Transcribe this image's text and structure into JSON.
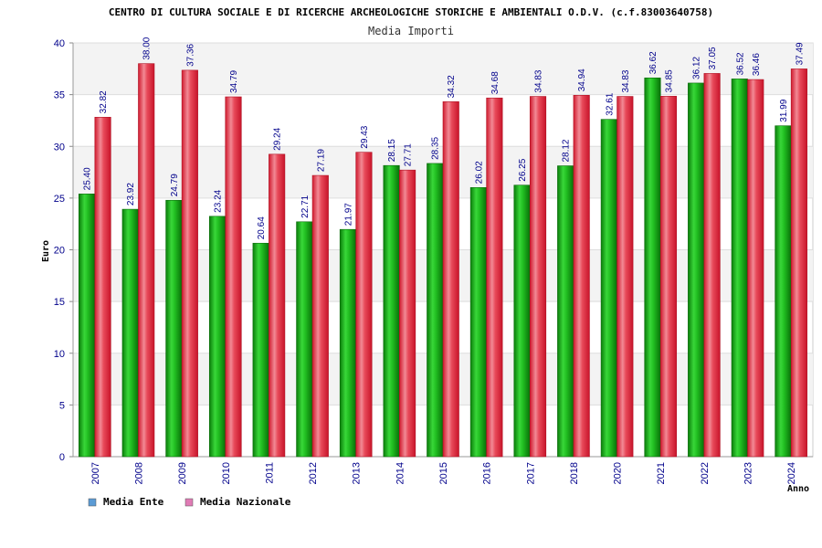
{
  "chart_data": {
    "type": "bar",
    "title": "CENTRO DI CULTURA SOCIALE E DI RICERCHE ARCHEOLOGICHE STORICHE E AMBIENTALI O.D.V. (c.f.83003640758)",
    "subtitle": "Media Importi",
    "ylabel": "Euro",
    "xlabel": "Anno",
    "ylim": [
      0,
      40
    ],
    "yticks": [
      0,
      5,
      10,
      15,
      20,
      25,
      30,
      35,
      40
    ],
    "grid": true,
    "legend_position": "bottom-left",
    "categories": [
      "2007",
      "2008",
      "2009",
      "2010",
      "2011",
      "2012",
      "2013",
      "2014",
      "2015",
      "2016",
      "2017",
      "2018",
      "2020",
      "2021",
      "2022",
      "2023",
      "2024"
    ],
    "series": [
      {
        "name": "Media Ente",
        "legend_color": "#5b9bd5",
        "bar_color": "#1db31d",
        "values": [
          25.4,
          23.92,
          24.79,
          23.24,
          20.64,
          22.71,
          21.97,
          28.15,
          28.35,
          26.02,
          26.25,
          28.12,
          32.61,
          36.62,
          36.12,
          36.52,
          31.99
        ],
        "labels": [
          "25.40",
          "23.92",
          "24.79",
          "23.24",
          "20.64",
          "22.71",
          "21.97",
          "28.15",
          "28.35",
          "26.02",
          "26.25",
          "28.12",
          "32.61",
          "36.62",
          "36.12",
          "36.52",
          "31.99"
        ]
      },
      {
        "name": "Media Nazionale",
        "legend_color": "#e07bb5",
        "bar_color": "#e8283c",
        "values": [
          32.82,
          38.0,
          37.36,
          34.79,
          29.24,
          27.19,
          29.43,
          27.71,
          34.32,
          34.68,
          34.83,
          34.94,
          34.83,
          34.85,
          37.05,
          36.46,
          37.49
        ],
        "labels": [
          "32.82",
          "38.00",
          "37.36",
          "34.79",
          "29.24",
          "27.19",
          "29.43",
          "27.71",
          "34.32",
          "34.68",
          "34.83",
          "34.94",
          "34.83",
          "34.85",
          "37.05",
          "36.46",
          "37.49"
        ]
      }
    ]
  }
}
